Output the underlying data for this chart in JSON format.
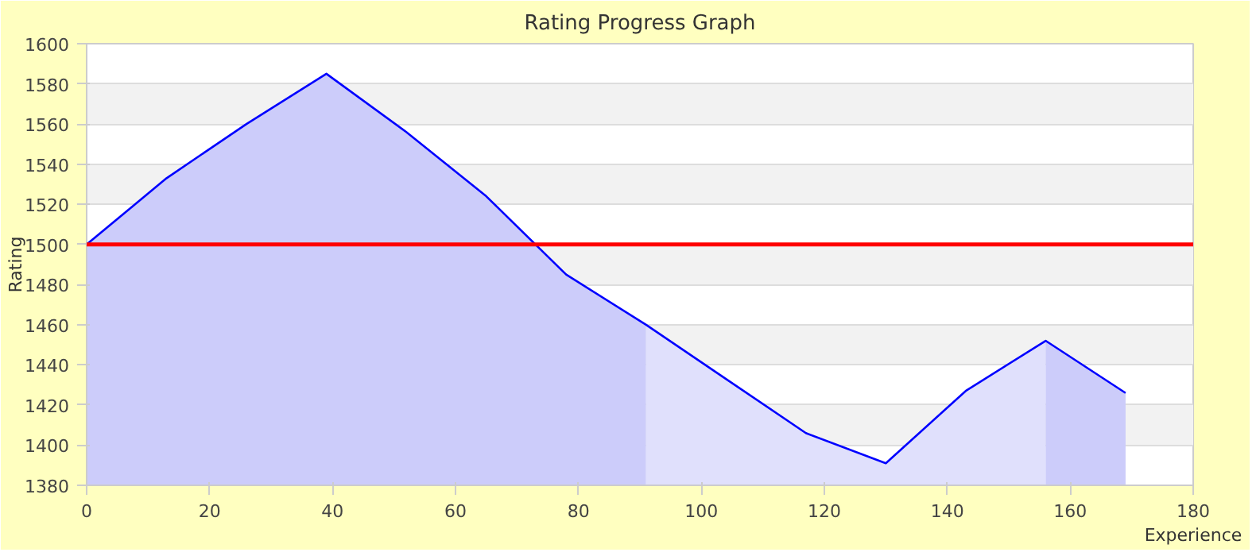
{
  "chart_data": {
    "type": "area",
    "title": "Rating Progress Graph",
    "xlabel": "Experience",
    "ylabel": "Rating",
    "xlim": [
      0,
      180
    ],
    "xticks": [
      0,
      20,
      40,
      60,
      80,
      100,
      120,
      140,
      160,
      180
    ],
    "ylim": [
      1380,
      1600
    ],
    "yticks": [
      1380,
      1400,
      1420,
      1440,
      1460,
      1480,
      1500,
      1520,
      1540,
      1560,
      1580,
      1600
    ],
    "grid": "y",
    "series": [
      {
        "color": "#ccccfa",
        "x": [
          0,
          13,
          26,
          39,
          52,
          65,
          78,
          91
        ],
        "values": [
          1500,
          1533,
          1560,
          1585,
          1556,
          1524,
          1485,
          1460
        ]
      },
      {
        "color": "#e0e0fc",
        "x": [
          91,
          104,
          117,
          130,
          143,
          156
        ],
        "values": [
          1460,
          1433,
          1406,
          1391,
          1427,
          1452
        ]
      },
      {
        "color": "#ccccfa",
        "x": [
          156,
          169
        ],
        "values": [
          1452,
          1426
        ]
      },
      {
        "type": "line",
        "color": "#0000ff",
        "x": [
          0,
          13,
          26,
          39,
          52,
          65,
          78,
          91,
          104,
          117,
          130,
          143,
          156,
          169
        ],
        "values": [
          1500,
          1533,
          1560,
          1585,
          1556,
          1524,
          1485,
          1460,
          1433,
          1406,
          1391,
          1427,
          1452,
          1426
        ]
      }
    ],
    "ref_lines": [
      {
        "axis": "y",
        "value": 1500,
        "color": "#ff0000"
      }
    ]
  }
}
